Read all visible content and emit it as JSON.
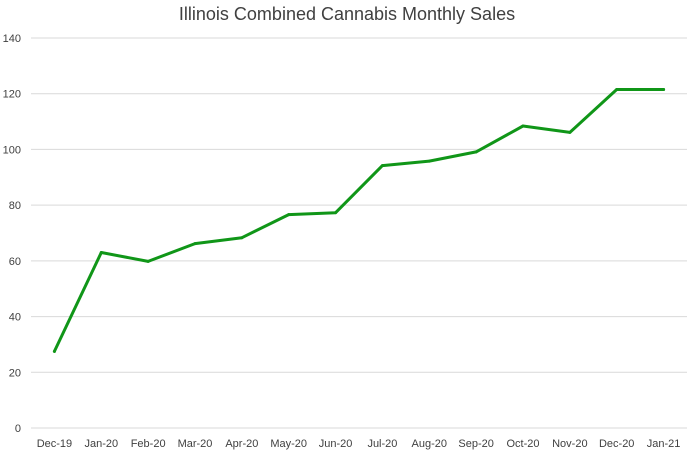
{
  "chart_data": {
    "type": "line",
    "title": "Illinois Combined Cannabis Monthly Sales",
    "xlabel": "",
    "ylabel": "",
    "categories": [
      "Dec-19",
      "Jan-20",
      "Feb-20",
      "Mar-20",
      "Apr-20",
      "May-20",
      "Jun-20",
      "Jul-20",
      "Aug-20",
      "Sep-20",
      "Oct-20",
      "Nov-20",
      "Dec-20",
      "Jan-21"
    ],
    "series": [
      {
        "values": [
          27.5,
          63,
          59.8,
          66.2,
          68.3,
          76.6,
          77.3,
          94.2,
          95.8,
          99.1,
          108.4,
          106.1,
          121.5,
          121.5
        ],
        "color": "#109618"
      }
    ],
    "ylim": [
      0,
      140
    ],
    "yticks": [
      0,
      20,
      40,
      60,
      80,
      100,
      120,
      140
    ],
    "grid": true,
    "legend": "none",
    "colors": {
      "line": "#109618",
      "grid": "#d9d9d9",
      "axis": "#d9d9d9",
      "text": "#404040"
    }
  }
}
